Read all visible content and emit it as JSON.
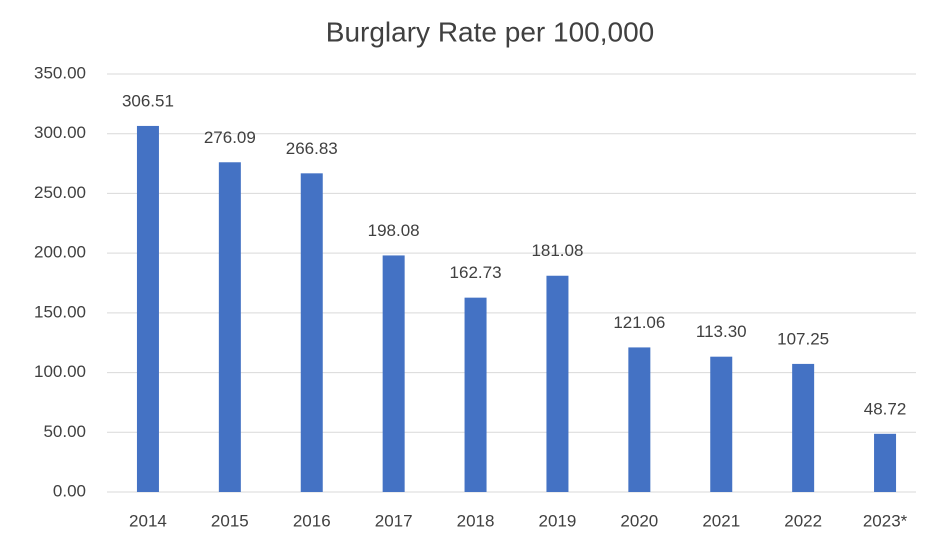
{
  "chart_data": {
    "type": "bar",
    "title": "Burglary Rate per 100,000",
    "categories": [
      "2014",
      "2015",
      "2016",
      "2017",
      "2018",
      "2019",
      "2020",
      "2021",
      "2022",
      "2023*"
    ],
    "values": [
      306.51,
      276.09,
      266.83,
      198.08,
      162.73,
      181.08,
      121.06,
      113.3,
      107.25,
      48.72
    ],
    "value_labels": [
      "306.51",
      "276.09",
      "266.83",
      "198.08",
      "162.73",
      "181.08",
      "121.06",
      "113.30",
      "107.25",
      "48.72"
    ],
    "color": "#4472c4",
    "ylim": [
      0,
      350
    ],
    "yticks": [
      {
        "value": 0,
        "label": "0.00"
      },
      {
        "value": 50,
        "label": "50.00"
      },
      {
        "value": 100,
        "label": "100.00"
      },
      {
        "value": 150,
        "label": "150.00"
      },
      {
        "value": 200,
        "label": "200.00"
      },
      {
        "value": 250,
        "label": "250.00"
      },
      {
        "value": 300,
        "label": "300.00"
      },
      {
        "value": 350,
        "label": "350.00"
      }
    ],
    "grid": true
  }
}
